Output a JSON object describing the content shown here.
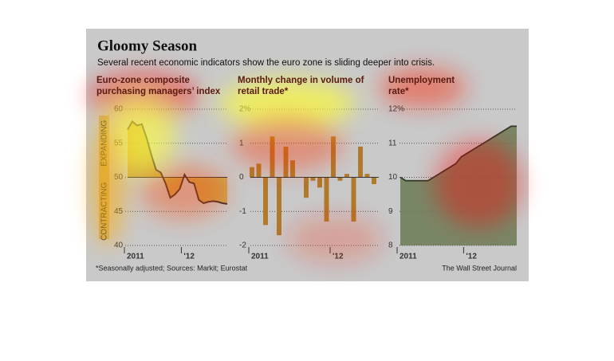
{
  "header": {
    "title": "Gloomy Season",
    "subtitle": "Several recent economic indicators show the euro zone is sliding deeper into crisis."
  },
  "footer": {
    "note": "*Seasonally adjusted; Sources: Markit; Eurostat",
    "source": "The Wall Street Journal"
  },
  "chart_data": [
    {
      "type": "area-line",
      "title": [
        "Euro-zone composite",
        "purchasing managers’ index"
      ],
      "annotations": [
        "EXPANDING",
        "CONTRACTING"
      ],
      "categories": [
        "2011",
        null,
        null,
        null,
        null,
        null,
        null,
        null,
        null,
        null,
        null,
        null,
        "'12",
        null,
        null,
        null,
        null,
        null,
        null,
        null,
        null,
        null
      ],
      "values": [
        57.0,
        58.2,
        57.6,
        57.8,
        55.8,
        53.3,
        51.1,
        50.7,
        49.1,
        47.0,
        47.5,
        48.3,
        50.4,
        49.3,
        49.1,
        46.7,
        46.2,
        46.4,
        46.5,
        46.4,
        46.2,
        46.1
      ],
      "color": "#c89a2a",
      "baseline": 50,
      "ylim": [
        40,
        60
      ],
      "yticks": [
        40,
        45,
        50,
        55,
        60
      ]
    },
    {
      "type": "bar",
      "title": [
        "Monthly change in volume of",
        "retail trade*"
      ],
      "categories": [
        "2011",
        null,
        null,
        null,
        null,
        null,
        null,
        null,
        null,
        null,
        null,
        null,
        "'12",
        null,
        null,
        null,
        null,
        null,
        null
      ],
      "values": [
        0.3,
        0.4,
        -1.4,
        1.2,
        -1.7,
        0.9,
        0.5,
        0,
        -0.6,
        -0.1,
        -0.3,
        -1.3,
        1.2,
        -0.1,
        0.1,
        -1.3,
        0.9,
        0.1,
        -0.2
      ],
      "color": "#b07a2a",
      "ylim": [
        -2,
        2
      ],
      "yticks": [
        -2,
        -1,
        0,
        1,
        {
          "value": 2,
          "label": "2%"
        }
      ]
    },
    {
      "type": "area",
      "title": [
        "Unemployment",
        "rate*"
      ],
      "categories": [
        "2011",
        null,
        null,
        null,
        null,
        null,
        null,
        null,
        null,
        null,
        null,
        null,
        "'12",
        null,
        null,
        null,
        null,
        null,
        null,
        null,
        null,
        null
      ],
      "values": [
        10.0,
        9.9,
        9.9,
        9.9,
        9.9,
        9.9,
        10.0,
        10.1,
        10.2,
        10.3,
        10.4,
        10.6,
        10.7,
        10.8,
        10.9,
        11.0,
        11.1,
        11.2,
        11.3,
        11.4,
        11.5,
        11.5
      ],
      "color": "#6b7a55",
      "ylim": [
        8,
        12
      ],
      "yticks": [
        8,
        9,
        10,
        11,
        {
          "value": 12,
          "label": "12%"
        }
      ]
    }
  ]
}
